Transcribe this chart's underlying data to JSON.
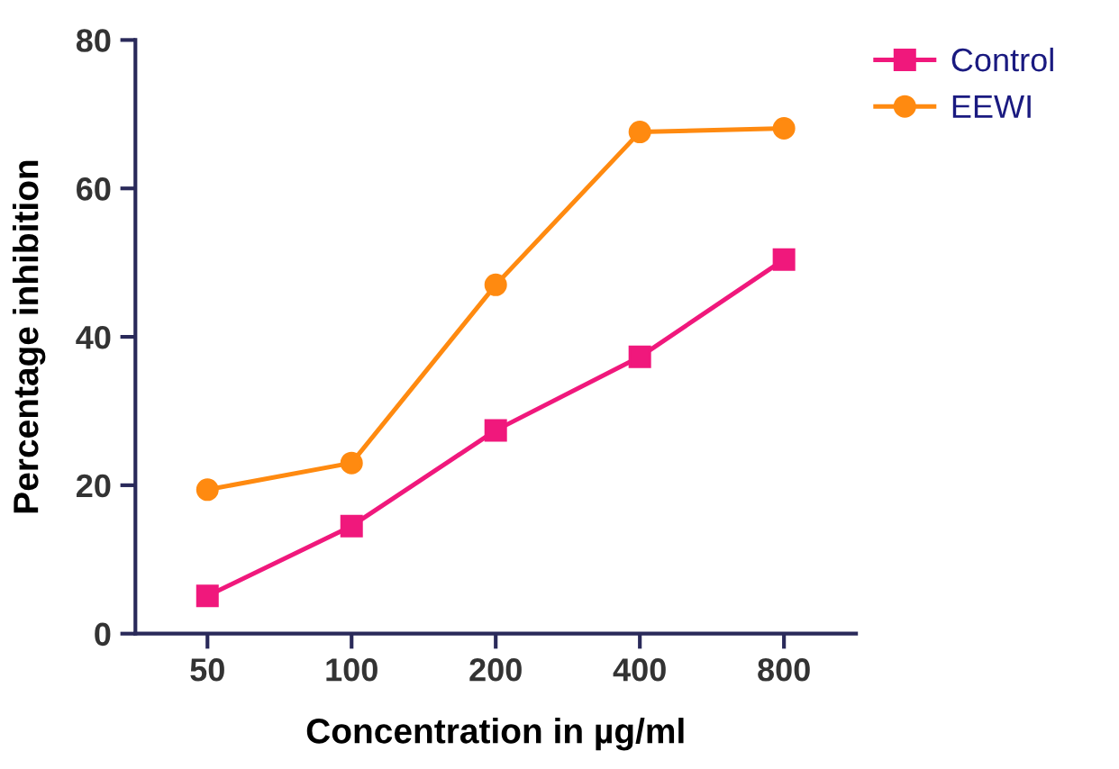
{
  "chart_data": {
    "type": "line",
    "xlabel": "Concentration in µg/ml",
    "ylabel": "Percentage inhibition",
    "categories": [
      "50",
      "100",
      "200",
      "400",
      "800"
    ],
    "series": [
      {
        "name": "Control",
        "color": "#f0187c",
        "marker": "square",
        "values": [
          5.1,
          14.5,
          27.4,
          37.3,
          50.4
        ]
      },
      {
        "name": "EEWI",
        "color": "#ff8a10",
        "marker": "circle",
        "values": [
          19.4,
          23,
          47,
          67.6,
          68.1
        ]
      }
    ],
    "ylim": [
      0,
      80
    ],
    "yticks": [
      0,
      20,
      40,
      60,
      80
    ],
    "grid": false,
    "legend": "top right",
    "line_style": "solid"
  }
}
